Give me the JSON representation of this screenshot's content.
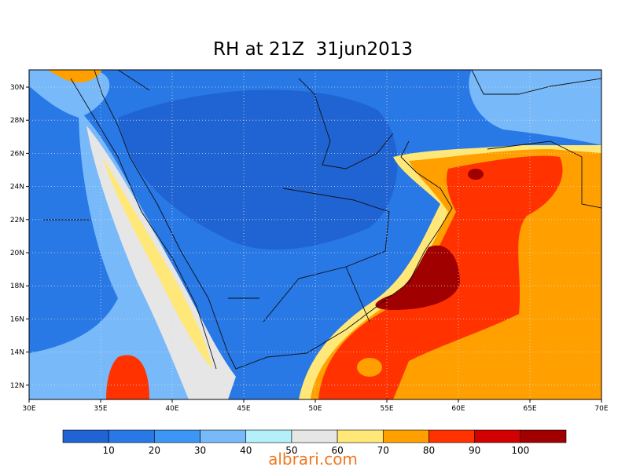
{
  "title": "RH at 21Z  31jun2013",
  "map": {
    "lon_labels": [
      "30E",
      "35E",
      "40E",
      "45E",
      "50E",
      "55E",
      "60E",
      "65E",
      "70E"
    ],
    "lat_labels": [
      "30N",
      "28N",
      "26N",
      "24N",
      "22N",
      "20N",
      "18N",
      "16N",
      "14N",
      "12N"
    ]
  },
  "colorbar": {
    "colors": [
      "#1f64d2",
      "#2878e6",
      "#3c96f5",
      "#78b9fa",
      "#b4f0fa",
      "#e6e6e6",
      "#ffe878",
      "#ffa000",
      "#ff3200",
      "#d20000",
      "#a00000"
    ],
    "labels": [
      "10",
      "20",
      "30",
      "40",
      "50",
      "60",
      "70",
      "80",
      "90",
      "100"
    ]
  },
  "watermark": "albrari.com"
}
